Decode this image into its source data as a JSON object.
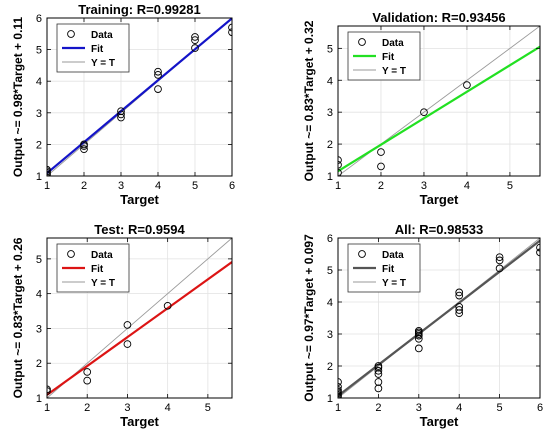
{
  "legend_labels": {
    "data": "Data",
    "fit": "Fit",
    "yt": "Y = T"
  },
  "colors": {
    "point": "#000000",
    "identity": "#9a9a9a",
    "axis": "#000000"
  },
  "chart_data": [
    {
      "type": "scatter",
      "title": "Training: R=0.99281",
      "xlabel": "Target",
      "ylabel": "Output ~= 0.98*Target + 0.11",
      "xlim": [
        1,
        6
      ],
      "ylim": [
        1,
        6
      ],
      "xticks": [
        1,
        2,
        3,
        4,
        5,
        6
      ],
      "yticks": [
        1,
        2,
        3,
        4,
        5,
        6
      ],
      "fit": {
        "slope": 0.98,
        "intercept": 0.11,
        "color": "#1414c8"
      },
      "legend": "top-left",
      "points": [
        [
          1,
          1.05
        ],
        [
          1,
          1.1
        ],
        [
          1,
          1.15
        ],
        [
          1,
          1.2
        ],
        [
          2,
          1.85
        ],
        [
          2,
          1.95
        ],
        [
          2,
          2.0
        ],
        [
          3,
          2.85
        ],
        [
          3,
          2.95
        ],
        [
          3,
          3.05
        ],
        [
          4,
          3.75
        ],
        [
          4,
          4.2
        ],
        [
          4,
          4.3
        ],
        [
          5,
          5.05
        ],
        [
          5,
          5.3
        ],
        [
          5,
          5.4
        ],
        [
          6,
          5.55
        ],
        [
          6,
          5.7
        ]
      ]
    },
    {
      "type": "scatter",
      "title": "Validation: R=0.93456",
      "xlabel": "Target",
      "ylabel": "Output ~= 0.83*Target + 0.32",
      "xlim": [
        1,
        5.7
      ],
      "ylim": [
        1,
        5.7
      ],
      "xticks": [
        1,
        2,
        3,
        4,
        5
      ],
      "yticks": [
        1,
        2,
        3,
        4,
        5
      ],
      "fit": {
        "slope": 0.83,
        "intercept": 0.32,
        "color": "#22e022"
      },
      "legend": "top-left",
      "points": [
        [
          1,
          1.1
        ],
        [
          1,
          1.35
        ],
        [
          1,
          1.5
        ],
        [
          2,
          1.3
        ],
        [
          2,
          1.75
        ],
        [
          3,
          3.0
        ],
        [
          4,
          3.85
        ]
      ]
    },
    {
      "type": "scatter",
      "title": "Test: R=0.9594",
      "xlabel": "Target",
      "ylabel": "Output ~= 0.83*Target + 0.26",
      "xlim": [
        1,
        5.6
      ],
      "ylim": [
        1,
        5.6
      ],
      "xticks": [
        1,
        2,
        3,
        4,
        5
      ],
      "yticks": [
        1,
        2,
        3,
        4,
        5
      ],
      "fit": {
        "slope": 0.83,
        "intercept": 0.26,
        "color": "#dc1414"
      },
      "legend": "top-left",
      "points": [
        [
          1,
          1.2
        ],
        [
          1,
          1.25
        ],
        [
          2,
          1.5
        ],
        [
          2,
          1.75
        ],
        [
          3,
          2.55
        ],
        [
          3,
          3.1
        ],
        [
          4,
          3.65
        ]
      ]
    },
    {
      "type": "scatter",
      "title": "All: R=0.98533",
      "xlabel": "Target",
      "ylabel": "Output ~= 0.97*Target + 0.097",
      "xlim": [
        1,
        6
      ],
      "ylim": [
        1,
        6
      ],
      "xticks": [
        1,
        2,
        3,
        4,
        5,
        6
      ],
      "yticks": [
        1,
        2,
        3,
        4,
        5,
        6
      ],
      "fit": {
        "slope": 0.97,
        "intercept": 0.097,
        "color": "#555555"
      },
      "legend": "top-left",
      "points": [
        [
          1,
          1.05
        ],
        [
          1,
          1.1
        ],
        [
          1,
          1.15
        ],
        [
          1,
          1.2
        ],
        [
          1,
          1.25
        ],
        [
          1,
          1.35
        ],
        [
          1,
          1.5
        ],
        [
          2,
          1.3
        ],
        [
          2,
          1.5
        ],
        [
          2,
          1.75
        ],
        [
          2,
          1.85
        ],
        [
          2,
          1.95
        ],
        [
          2,
          2.0
        ],
        [
          3,
          2.55
        ],
        [
          3,
          2.85
        ],
        [
          3,
          2.95
        ],
        [
          3,
          3.0
        ],
        [
          3,
          3.05
        ],
        [
          3,
          3.1
        ],
        [
          4,
          3.65
        ],
        [
          4,
          3.75
        ],
        [
          4,
          3.85
        ],
        [
          4,
          4.2
        ],
        [
          4,
          4.3
        ],
        [
          5,
          5.05
        ],
        [
          5,
          5.3
        ],
        [
          5,
          5.4
        ],
        [
          6,
          5.55
        ],
        [
          6,
          5.7
        ]
      ]
    }
  ]
}
